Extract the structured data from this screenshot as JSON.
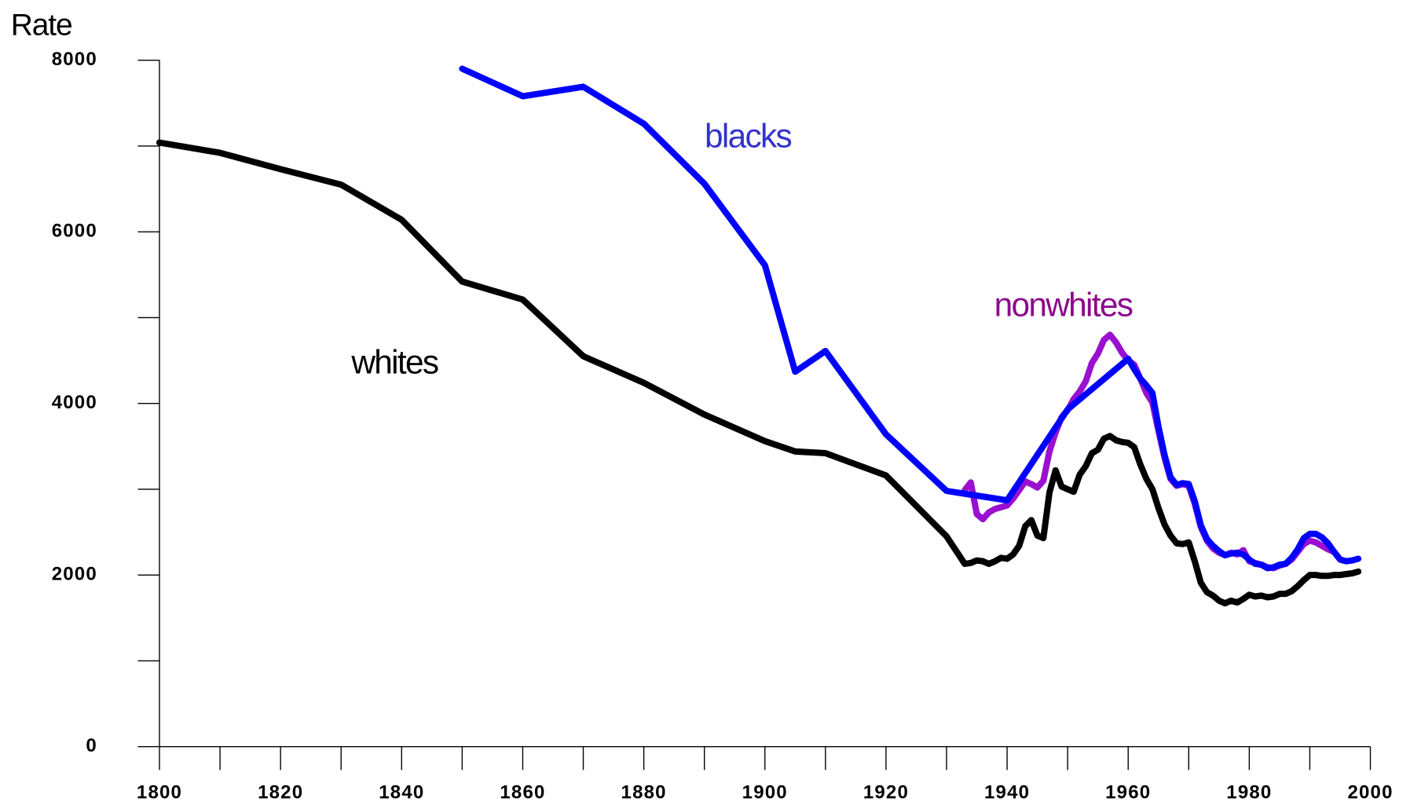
{
  "chart_data": {
    "type": "line",
    "y_label": "Rate",
    "xlim": [
      1800,
      2000
    ],
    "xticks": [
      1800,
      1820,
      1840,
      1860,
      1880,
      1900,
      1920,
      1940,
      1960,
      1980,
      2000
    ],
    "xminor": [
      1810,
      1830,
      1850,
      1870,
      1890,
      1910,
      1930,
      1950,
      1970,
      1990
    ],
    "ylim": [
      0,
      8000
    ],
    "yticks": [
      0,
      2000,
      4000,
      6000,
      8000
    ],
    "yminor": [
      1000,
      3000,
      5000,
      7000
    ],
    "series": [
      {
        "name": "nonwhites",
        "color": "#9a0fd0",
        "label_color": "#8b0a8b",
        "x": [
          1933,
          1934,
          1935,
          1936,
          1937,
          1938,
          1939,
          1940,
          1941,
          1942,
          1943,
          1944,
          1945,
          1946,
          1947,
          1948,
          1949,
          1950,
          1951,
          1952,
          1953,
          1954,
          1955,
          1956,
          1957,
          1958,
          1959,
          1960,
          1961,
          1962,
          1963,
          1964,
          1965,
          1966,
          1967,
          1968,
          1969,
          1970,
          1971,
          1972,
          1973,
          1974,
          1975,
          1976,
          1977,
          1978,
          1979,
          1980,
          1981,
          1982,
          1983,
          1984,
          1985,
          1986,
          1987,
          1988,
          1989,
          1990,
          1991,
          1992,
          1993,
          1994
        ],
        "values": [
          2990,
          3080,
          2710,
          2650,
          2730,
          2770,
          2790,
          2810,
          2890,
          2990,
          3090,
          3060,
          3020,
          3100,
          3440,
          3660,
          3840,
          3920,
          4050,
          4140,
          4260,
          4470,
          4580,
          4740,
          4800,
          4710,
          4590,
          4500,
          4450,
          4290,
          4120,
          4010,
          3680,
          3370,
          3120,
          3040,
          3060,
          3040,
          2830,
          2560,
          2400,
          2310,
          2260,
          2230,
          2260,
          2240,
          2290,
          2160,
          2140,
          2120,
          2090,
          2080,
          2110,
          2130,
          2180,
          2270,
          2360,
          2400,
          2380,
          2340,
          2300,
          2270
        ]
      },
      {
        "name": "blacks",
        "color": "#0000ff",
        "label_color": "#3333cc",
        "x": [
          1850,
          1860,
          1870,
          1880,
          1890,
          1900,
          1905,
          1910,
          1920,
          1930,
          1940,
          1950,
          1960,
          1961,
          1962,
          1963,
          1964,
          1965,
          1966,
          1967,
          1968,
          1969,
          1970,
          1971,
          1972,
          1973,
          1974,
          1975,
          1976,
          1977,
          1978,
          1979,
          1980,
          1981,
          1982,
          1983,
          1984,
          1985,
          1986,
          1987,
          1988,
          1989,
          1990,
          1991,
          1992,
          1993,
          1994,
          1995,
          1996,
          1997,
          1998
        ],
        "values": [
          7900,
          7580,
          7690,
          7260,
          6560,
          5610,
          4370,
          4610,
          3640,
          2980,
          2870,
          3930,
          4520,
          4400,
          4290,
          4210,
          4120,
          3730,
          3400,
          3140,
          3050,
          3070,
          3060,
          2860,
          2580,
          2420,
          2340,
          2280,
          2230,
          2250,
          2260,
          2240,
          2180,
          2130,
          2120,
          2080,
          2090,
          2120,
          2130,
          2200,
          2300,
          2430,
          2480,
          2480,
          2440,
          2370,
          2270,
          2180,
          2160,
          2170,
          2190
        ]
      },
      {
        "name": "whites",
        "color": "#000000",
        "label_color": "#000000",
        "x": [
          1800,
          1810,
          1820,
          1830,
          1840,
          1850,
          1860,
          1870,
          1880,
          1890,
          1900,
          1905,
          1910,
          1920,
          1930,
          1933,
          1934,
          1935,
          1936,
          1937,
          1938,
          1939,
          1940,
          1941,
          1942,
          1943,
          1944,
          1945,
          1946,
          1947,
          1948,
          1949,
          1950,
          1951,
          1952,
          1953,
          1954,
          1955,
          1956,
          1957,
          1958,
          1959,
          1960,
          1961,
          1962,
          1963,
          1964,
          1965,
          1966,
          1967,
          1968,
          1969,
          1970,
          1971,
          1972,
          1973,
          1974,
          1975,
          1976,
          1977,
          1978,
          1979,
          1980,
          1981,
          1982,
          1983,
          1984,
          1985,
          1986,
          1987,
          1988,
          1989,
          1990,
          1991,
          1992,
          1993,
          1994,
          1995,
          1996,
          1997,
          1998
        ],
        "values": [
          7040,
          6920,
          6730,
          6550,
          6140,
          5420,
          5210,
          4550,
          4240,
          3870,
          3560,
          3440,
          3420,
          3160,
          2450,
          2130,
          2140,
          2170,
          2160,
          2130,
          2160,
          2200,
          2190,
          2240,
          2340,
          2570,
          2640,
          2460,
          2430,
          2960,
          3220,
          3030,
          3000,
          2970,
          3170,
          3270,
          3420,
          3460,
          3590,
          3620,
          3570,
          3550,
          3540,
          3490,
          3290,
          3120,
          3000,
          2780,
          2590,
          2460,
          2370,
          2360,
          2380,
          2160,
          1910,
          1800,
          1760,
          1700,
          1670,
          1700,
          1680,
          1720,
          1770,
          1750,
          1760,
          1740,
          1750,
          1780,
          1780,
          1810,
          1870,
          1940,
          2000,
          2000,
          1990,
          1990,
          2000,
          2000,
          2010,
          2020,
          2040
        ]
      }
    ]
  }
}
